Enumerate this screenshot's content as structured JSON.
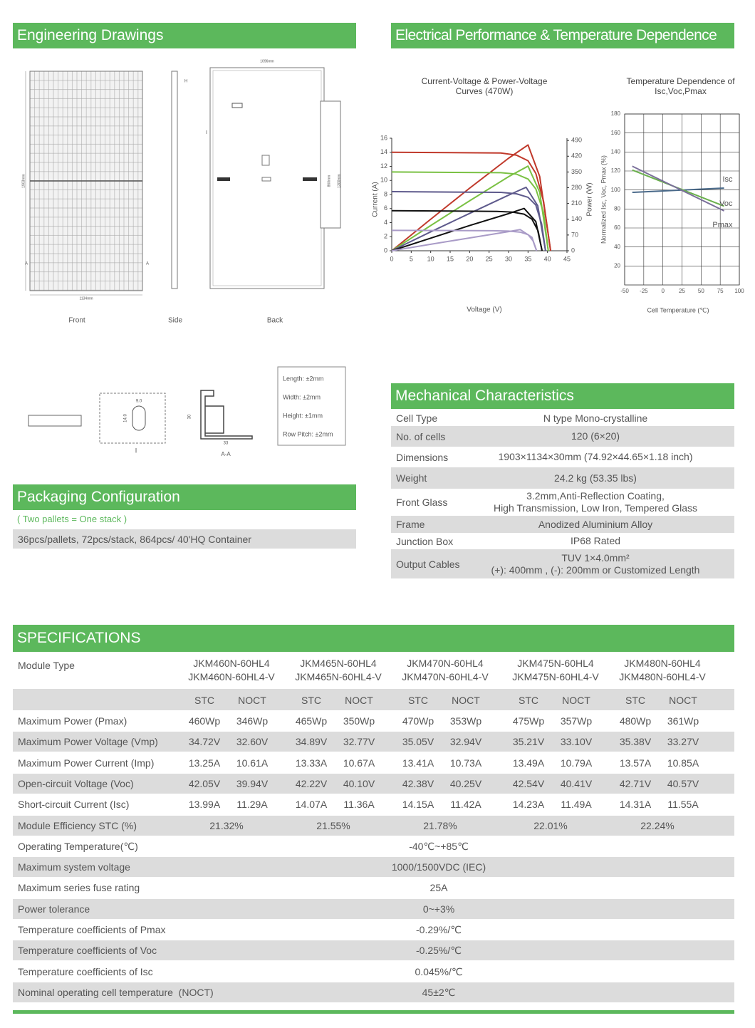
{
  "engineering": {
    "title": "Engineering Drawings",
    "views": [
      "Front",
      "Side",
      "Back"
    ],
    "dimensions": {
      "front_width": "1134mm",
      "front_height": "1903mm",
      "back_width": "1096mm",
      "back_inner": "860mm",
      "back_height": "1300mm",
      "side_mark": "H",
      "section_mark": "A"
    },
    "details": {
      "detail": "I",
      "section": "A-A",
      "profile_height": "30",
      "profile_width": "33",
      "hole_w": "9.0",
      "hole_h": "14.0"
    },
    "tolerances": [
      "Length: ±2mm",
      "Width: ±2mm",
      "Height: ±1mm",
      "Row Pitch: ±2mm"
    ]
  },
  "electrical": {
    "title": "Electrical Performance & Temperature Dependence"
  },
  "chart_data": [
    {
      "type": "line",
      "title": "Current-Voltage & Power-Voltage Curves (470W)",
      "x_label": "Voltage (V)",
      "y_label": "Current (A)",
      "y2_label": "Power (W)",
      "xlim": [
        0,
        45
      ],
      "xticks": [
        0,
        5,
        10,
        15,
        20,
        25,
        30,
        35,
        40,
        45
      ],
      "ylim": [
        0,
        16
      ],
      "yticks": [
        0,
        2,
        4,
        6,
        8,
        10,
        12,
        14,
        16
      ],
      "y2lim": [
        0,
        500
      ],
      "y2ticks": [
        0,
        70,
        140,
        210,
        280,
        350,
        420,
        490
      ],
      "grid": false,
      "series": [
        {
          "color": "#c0392b",
          "x": [
            0,
            28,
            32,
            35,
            37,
            39,
            40.8
          ],
          "values": [
            14,
            13.9,
            13.6,
            12.8,
            11,
            7,
            0
          ]
        },
        {
          "color": "#c0392b",
          "axis": "y2",
          "x": [
            0,
            10,
            20,
            30,
            35,
            38,
            40.8
          ],
          "values": [
            0,
            140,
            278,
            411,
            470,
            330,
            0
          ]
        },
        {
          "color": "#7ac143",
          "x": [
            0,
            28,
            32,
            35,
            37,
            39,
            40.2
          ],
          "values": [
            11.2,
            11.1,
            10.9,
            10.2,
            8.8,
            5.4,
            0
          ]
        },
        {
          "color": "#7ac143",
          "axis": "y2",
          "x": [
            0,
            10,
            20,
            30,
            35,
            38,
            40.2
          ],
          "values": [
            0,
            112,
            222,
            329,
            376,
            260,
            0
          ]
        },
        {
          "color": "#5e5a8c",
          "x": [
            0,
            28,
            32,
            35,
            37,
            38.5,
            39.5
          ],
          "values": [
            8.4,
            8.3,
            8.1,
            7.6,
            6.5,
            3.8,
            0
          ]
        },
        {
          "color": "#5e5a8c",
          "axis": "y2",
          "x": [
            0,
            10,
            20,
            30,
            34.5,
            37.5,
            39.5
          ],
          "values": [
            0,
            84,
            166,
            247,
            282,
            200,
            0
          ]
        },
        {
          "color": "#111111",
          "x": [
            0,
            27,
            31,
            34,
            36,
            37.6,
            38.6
          ],
          "values": [
            5.7,
            5.6,
            5.5,
            5.2,
            4.5,
            2.8,
            0
          ]
        },
        {
          "color": "#111111",
          "axis": "y2",
          "x": [
            0,
            10,
            20,
            30,
            34,
            37,
            38.6
          ],
          "values": [
            0,
            56,
            112,
            165,
            188,
            130,
            0
          ]
        },
        {
          "color": "#a99bc7",
          "x": [
            0,
            26,
            30,
            33,
            35,
            36.3,
            37.2
          ],
          "values": [
            2.9,
            2.85,
            2.8,
            2.65,
            2.3,
            1.4,
            0
          ]
        },
        {
          "color": "#a99bc7",
          "axis": "y2",
          "x": [
            0,
            10,
            20,
            30,
            33,
            36,
            37.2
          ],
          "values": [
            0,
            29,
            57,
            85,
            94,
            60,
            0
          ]
        }
      ]
    },
    {
      "type": "line",
      "title": "Temperature Dependence of Isc,Voc,Pmax",
      "x_label": "Cell Temperature (℃)",
      "y_label": "Normalized Isc, Voc, Pmax (%)",
      "xlim": [
        -50,
        100
      ],
      "xticks": [
        -50,
        -25,
        0,
        25,
        50,
        75,
        100
      ],
      "ylim": [
        0,
        180
      ],
      "yticks": [
        20,
        40,
        60,
        80,
        100,
        120,
        140,
        160,
        180
      ],
      "grid": true,
      "series": [
        {
          "name": "Isc",
          "color": "#4a6a8a",
          "x": [
            -40,
            80
          ],
          "values": [
            97.5,
            102
          ]
        },
        {
          "name": "Voc",
          "color": "#6ab04c",
          "x": [
            -40,
            80
          ],
          "values": [
            121,
            83
          ]
        },
        {
          "name": "Pmax",
          "color": "#7a6f9a",
          "x": [
            -40,
            80
          ],
          "values": [
            125,
            78
          ]
        }
      ]
    }
  ],
  "packaging": {
    "title": "Packaging Configuration",
    "note": "( Two pallets = One stack )",
    "text": "36pcs/pallets, 72pcs/stack, 864pcs/ 40'HQ Container"
  },
  "mechanical": {
    "title": "Mechanical Characteristics",
    "rows": [
      {
        "label": "Cell Type",
        "value": [
          "N type Mono-crystalline"
        ]
      },
      {
        "label": "No. of cells",
        "value": [
          "120 (6×20)"
        ]
      },
      {
        "label": "Dimensions",
        "value": [
          "1903×1134×30mm (74.92×44.65×1.18 inch)"
        ]
      },
      {
        "label": "Weight",
        "value": [
          "24.2 kg (53.35 lbs)"
        ]
      },
      {
        "label": "Front Glass",
        "value": [
          "3.2mm,Anti-Reflection Coating,",
          "High Transmission, Low Iron, Tempered Glass"
        ]
      },
      {
        "label": "Frame",
        "value": [
          "Anodized Aluminium Alloy"
        ]
      },
      {
        "label": "Junction Box",
        "value": [
          "IP68 Rated"
        ]
      },
      {
        "label": "Output Cables",
        "value": [
          "TUV 1×4.0mm²",
          "(+): 400mm , (-): 200mm or Customized Length"
        ]
      }
    ]
  },
  "specifications": {
    "title": "SPECIFICATIONS",
    "module_type_label": "Module Type",
    "models": [
      [
        "JKM460N-60HL4",
        "JKM460N-60HL4-V"
      ],
      [
        "JKM465N-60HL4",
        "JKM465N-60HL4-V"
      ],
      [
        "JKM470N-60HL4",
        "JKM470N-60HL4-V"
      ],
      [
        "JKM475N-60HL4",
        "JKM475N-60HL4-V"
      ],
      [
        "JKM480N-60HL4",
        "JKM480N-60HL4-V"
      ]
    ],
    "conditions": [
      "STC",
      "NOCT"
    ],
    "rows": [
      {
        "label": "Maximum Power (Pmax)",
        "values": [
          "460Wp",
          "346Wp",
          "465Wp",
          "350Wp",
          "470Wp",
          "353Wp",
          "475Wp",
          "357Wp",
          "480Wp",
          "361Wp"
        ]
      },
      {
        "label": "Maximum Power Voltage (Vmp)",
        "values": [
          "34.72V",
          "32.60V",
          "34.89V",
          "32.77V",
          "35.05V",
          "32.94V",
          "35.21V",
          "33.10V",
          "35.38V",
          "33.27V"
        ]
      },
      {
        "label": "Maximum Power Current (Imp)",
        "values": [
          "13.25A",
          "10.61A",
          "13.33A",
          "10.67A",
          "13.41A",
          "10.73A",
          "13.49A",
          "10.79A",
          "13.57A",
          "10.85A"
        ]
      },
      {
        "label": "Open-circuit Voltage (Voc)",
        "values": [
          "42.05V",
          "39.94V",
          "42.22V",
          "40.10V",
          "42.38V",
          "40.25V",
          "42.54V",
          "40.41V",
          "42.71V",
          "40.57V"
        ]
      },
      {
        "label": "Short-circuit Current (Isc)",
        "values": [
          "13.99A",
          "11.29A",
          "14.07A",
          "11.36A",
          "14.15A",
          "11.42A",
          "14.23A",
          "11.49A",
          "14.31A",
          "11.55A"
        ]
      },
      {
        "label": "Module Efficiency STC (%)",
        "values": [
          "21.32%",
          "21.55%",
          "21.78%",
          "22.01%",
          "22.24%"
        ]
      },
      {
        "label": "Operating Temperature(℃)",
        "values": [
          "-40℃~+85℃"
        ]
      },
      {
        "label": "Maximum system voltage",
        "values": [
          "1000/1500VDC (IEC)"
        ]
      },
      {
        "label": "Maximum series fuse rating",
        "values": [
          "25A"
        ]
      },
      {
        "label": "Power tolerance",
        "values": [
          "0~+3%"
        ]
      },
      {
        "label": "Temperature coefficients of Pmax",
        "values": [
          "-0.29%/℃"
        ]
      },
      {
        "label": "Temperature coefficients of Voc",
        "values": [
          "-0.25%/℃"
        ]
      },
      {
        "label": "Temperature coefficients of Isc",
        "values": [
          "0.045%/℃"
        ]
      },
      {
        "label": "Nominal operating cell temperature  (NOCT)",
        "values": [
          "45±2℃"
        ]
      }
    ]
  }
}
